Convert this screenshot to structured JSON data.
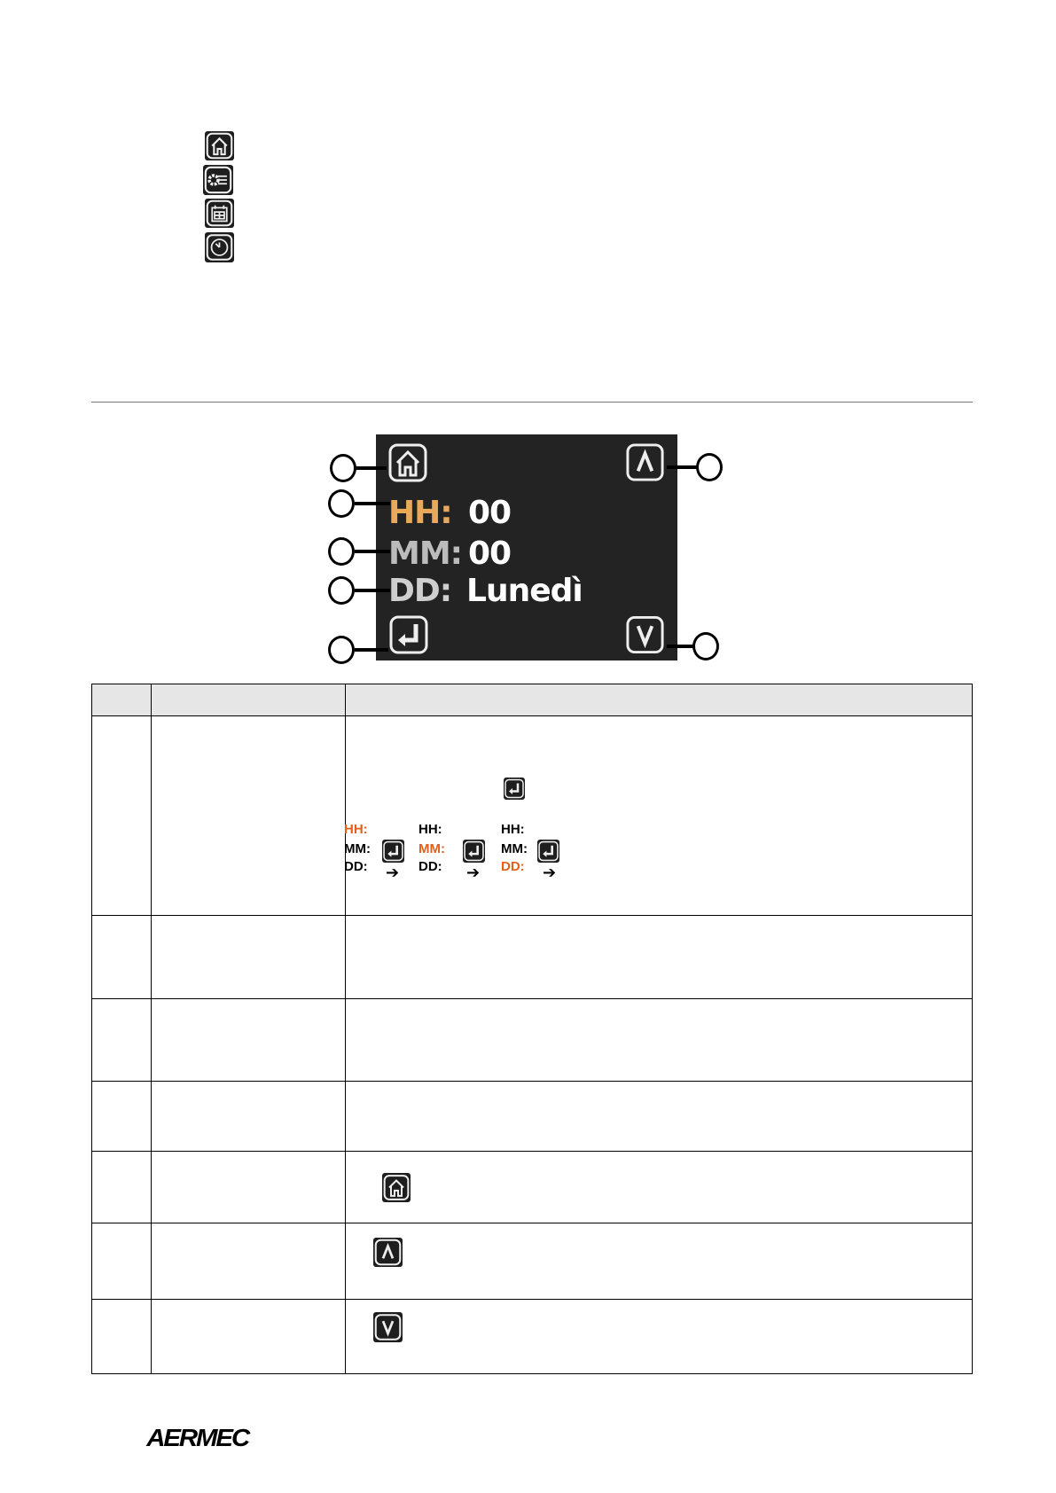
{
  "legend_icons": [
    "home-icon",
    "settings-list-icon",
    "calendar-icon",
    "clock-icon"
  ],
  "display": {
    "hh_label": "HH:",
    "hh_value": "00",
    "mm_label": "MM:",
    "mm_value": "00",
    "dd_label": "DD:",
    "dd_value": "Lunedì",
    "colors": {
      "selected": "#e8a95a",
      "inactive": "#bcbcbc",
      "background": "#232323"
    }
  },
  "table": {
    "sequence": [
      {
        "hh": "HH:",
        "mm": "MM:",
        "dd": "DD:",
        "active": "hh"
      },
      {
        "hh": "HH:",
        "mm": "MM:",
        "dd": "DD:",
        "active": "mm"
      },
      {
        "hh": "HH:",
        "mm": "MM:",
        "dd": "DD:",
        "active": "dd"
      }
    ],
    "arrow": "➔",
    "highlight_color": "#e0601c"
  },
  "footer": {
    "logo": "AERMEC"
  }
}
